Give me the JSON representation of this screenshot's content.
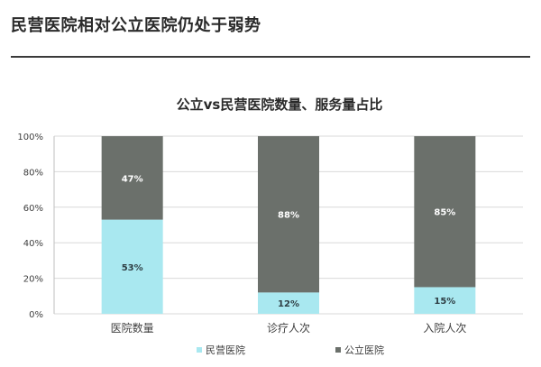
{
  "page": {
    "title": "民营医院相对公立医院仍处于弱势"
  },
  "colors": {
    "private": "#a9e8f0",
    "public": "#6b706b",
    "grid": "#d9d9d9",
    "axis": "#bfbfbf",
    "text": "#404040"
  },
  "chart_data": {
    "type": "bar",
    "stacked": true,
    "percent": true,
    "title": "公立vs民营医院数量、服务量占比",
    "categories": [
      "医院数量",
      "诊疗人次",
      "入院人次"
    ],
    "series": [
      {
        "name": "民营医院",
        "values": [
          53,
          12,
          15
        ],
        "labels": [
          "53%",
          "12%",
          "15%"
        ]
      },
      {
        "name": "公立医院",
        "values": [
          47,
          88,
          85
        ],
        "labels": [
          "47%",
          "88%",
          "85%"
        ]
      }
    ],
    "ylim": [
      0,
      100
    ],
    "yticks": [
      "0%",
      "20%",
      "40%",
      "60%",
      "80%",
      "100%"
    ],
    "grid": true,
    "legend": "bottom"
  }
}
